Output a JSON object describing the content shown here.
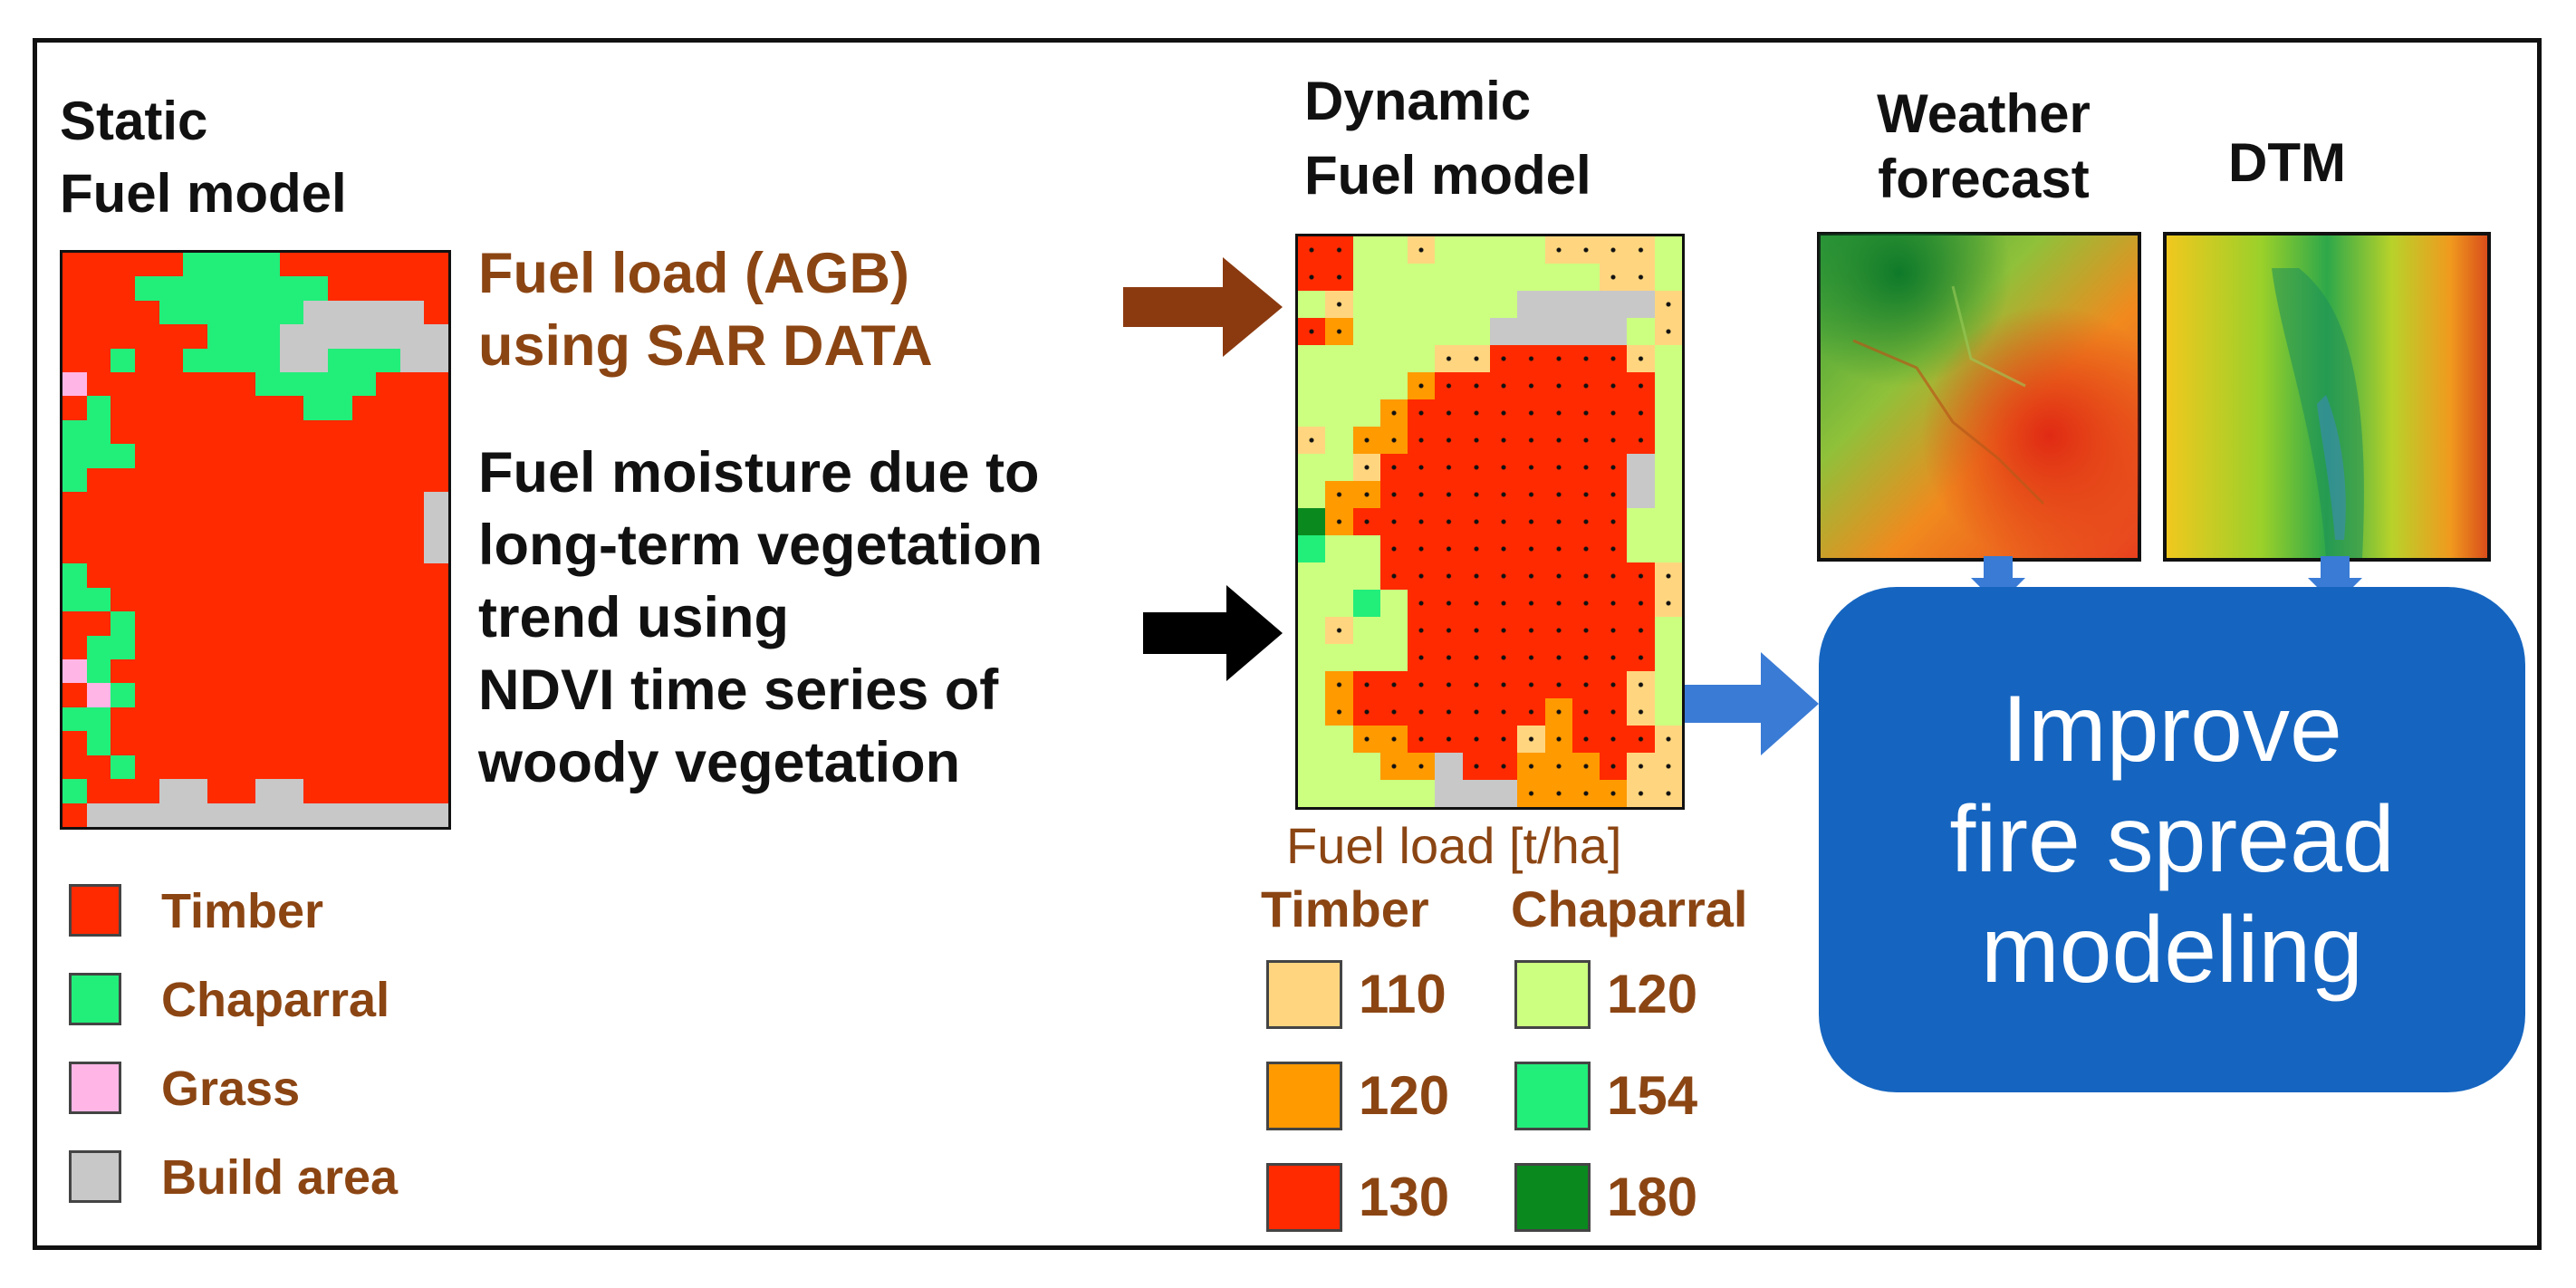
{
  "static": {
    "title_line1": "Static",
    "title_line2": "Fuel model",
    "legend": [
      {
        "label": "Timber",
        "color": "#FF2A00"
      },
      {
        "label": "Chaparral",
        "color": "#22EE7A"
      },
      {
        "label": "Grass",
        "color": "#FFB6E6"
      },
      {
        "label": "Build area",
        "color": "#C8C8C8"
      }
    ]
  },
  "fuel_load_text": {
    "line1": "Fuel load (AGB)",
    "line2": "using SAR DATA"
  },
  "fuel_moisture_text": {
    "line1": "Fuel moisture due to",
    "line2": "long-term vegetation",
    "line3": "trend using",
    "line4": "NDVI time series of",
    "line5": "woody vegetation"
  },
  "dynamic": {
    "title_line1": "Dynamic",
    "title_line2": "Fuel model",
    "legend_title": "Fuel load [t/ha]",
    "timber_header": "Timber",
    "chaparral_header": "Chaparral",
    "timber_items": [
      {
        "value": "110",
        "color": "#FFD67F"
      },
      {
        "value": "120",
        "color": "#FF9A00"
      },
      {
        "value": "130",
        "color": "#FF2A00"
      }
    ],
    "chaparral_items": [
      {
        "value": "120",
        "color": "#CCFF80"
      },
      {
        "value": "154",
        "color": "#22EE7A"
      },
      {
        "value": "180",
        "color": "#0A8A1E"
      }
    ]
  },
  "weather": {
    "title_line1": "Weather",
    "title_line2": "forecast"
  },
  "dtm": {
    "title": "DTM"
  },
  "improve_box": {
    "line1": "Improve",
    "line2": "fire spread",
    "line3": "modeling"
  },
  "colors": {
    "arrow_brown": "#8B3A10",
    "arrow_black": "#000000",
    "arrow_blue": "#3A7BD5",
    "box_blue": "#1565C0",
    "label_brown": "#8B4513"
  }
}
